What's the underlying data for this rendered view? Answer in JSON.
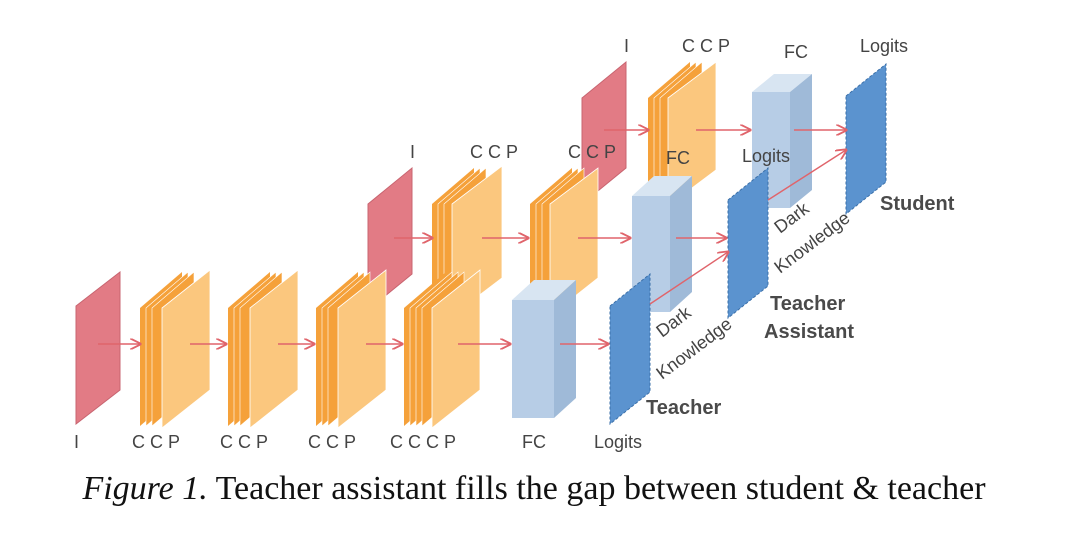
{
  "labels": {
    "input": "I",
    "conv_block": "C C  P",
    "conv_block3": "C C C  P",
    "fc": "FC",
    "logits": "Logits",
    "dark": "Dark",
    "knowledge": "Knowledge"
  },
  "networks": {
    "teacher": "Teacher",
    "assistant_line1": "Teacher",
    "assistant_line2": "Assistant",
    "student": "Student"
  },
  "caption": {
    "prefix": "Figure 1.",
    "text": " Teacher assistant fills the gap between student & teacher"
  },
  "colors": {
    "input": "#e27b85",
    "conv_dark": "#f5a13a",
    "conv_light": "#fbc77e",
    "fc": "#b7cde6",
    "logits": "#5b93cf",
    "arrow": "#e0646b"
  }
}
